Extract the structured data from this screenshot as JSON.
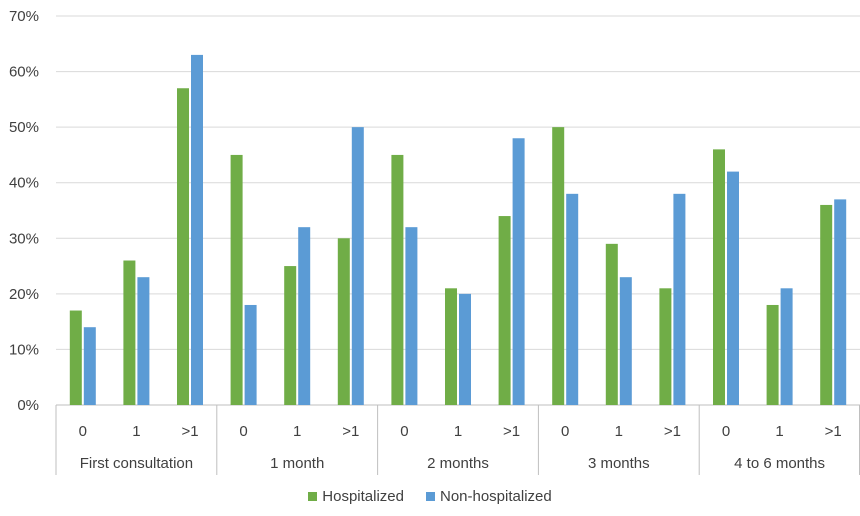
{
  "chart_data": {
    "type": "bar",
    "title": "",
    "xlabel": "",
    "ylabel": "",
    "ylim": [
      0,
      70
    ],
    "y_tick_step": 10,
    "y_tick_suffix": "%",
    "y_tick_labels": [
      "0%",
      "10%",
      "20%",
      "30%",
      "40%",
      "50%",
      "60%",
      "70%"
    ],
    "grid": true,
    "legend_position": "bottom",
    "groups": [
      {
        "label": "First consultation",
        "categories": [
          "0",
          "1",
          ">1"
        ]
      },
      {
        "label": "1 month",
        "categories": [
          "0",
          "1",
          ">1"
        ]
      },
      {
        "label": "2 months",
        "categories": [
          "0",
          "1",
          ">1"
        ]
      },
      {
        "label": "3 months",
        "categories": [
          "0",
          "1",
          ">1"
        ]
      },
      {
        "label": "4 to 6 months",
        "categories": [
          "0",
          "1",
          ">1"
        ]
      }
    ],
    "series": [
      {
        "name": "Hospitalized",
        "color": "#70ad47",
        "values": [
          17,
          26,
          57,
          45,
          25,
          30,
          45,
          21,
          34,
          50,
          29,
          21,
          46,
          18,
          36
        ]
      },
      {
        "name": "Non-hospitalized",
        "color": "#5b9bd5",
        "values": [
          14,
          23,
          63,
          18,
          32,
          50,
          32,
          20,
          48,
          38,
          23,
          38,
          42,
          21,
          37
        ]
      }
    ]
  }
}
